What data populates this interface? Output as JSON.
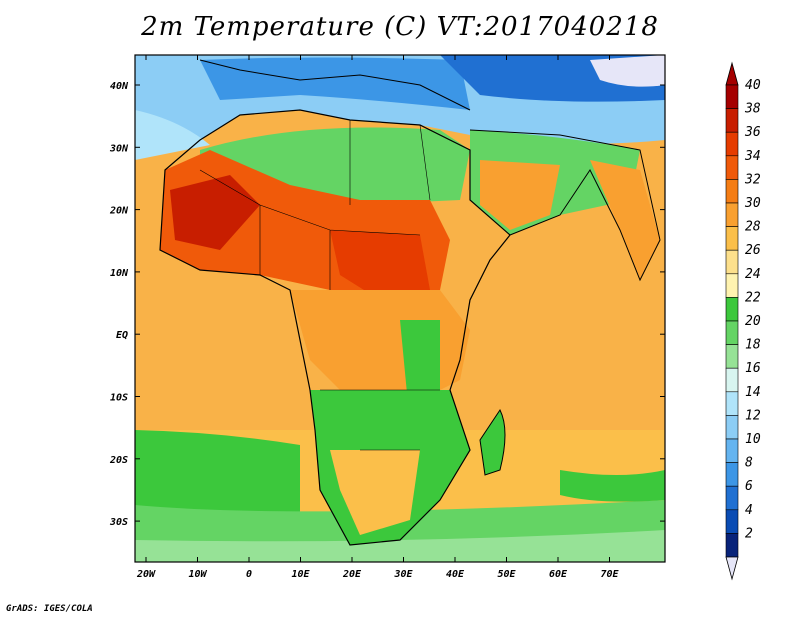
{
  "title": "2m Temperature (C) VT:2017040218",
  "credit": "GrADS: IGES/COLA",
  "lon_ticks": [
    "20W",
    "10W",
    "0",
    "10E",
    "20E",
    "30E",
    "40E",
    "50E",
    "60E",
    "70E"
  ],
  "lat_ticks": [
    "40N",
    "30N",
    "20N",
    "10N",
    "EQ",
    "10S",
    "20S",
    "30S"
  ],
  "colorbar": {
    "labels": [
      "40",
      "38",
      "36",
      "34",
      "32",
      "30",
      "28",
      "26",
      "24",
      "22",
      "20",
      "18",
      "16",
      "14",
      "12",
      "10",
      "8",
      "6",
      "4",
      "2"
    ],
    "colors": [
      "#a50000",
      "#c81e00",
      "#e63c00",
      "#f05a0a",
      "#f57d14",
      "#f9a030",
      "#fbbf4a",
      "#fde08c",
      "#fff3b0",
      "#3cc83c",
      "#64d464",
      "#96e296",
      "#d8f5f0",
      "#b0e4fa",
      "#8ccdf5",
      "#64b4f0",
      "#3c96e6",
      "#2070d2",
      "#0a4cb4",
      "#08237a"
    ],
    "max_cap_color": "#a50000",
    "min_cap_color": "#e6e6f8"
  }
}
